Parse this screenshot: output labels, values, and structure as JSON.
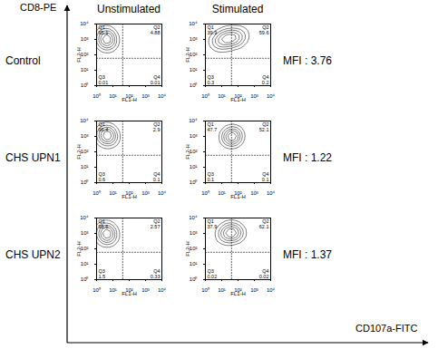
{
  "figure": {
    "y_label": "CD8-PE",
    "x_label": "CD107a-FITC",
    "columns": [
      "Unstimulated",
      "Stimulated"
    ],
    "rows": [
      {
        "label": "Control",
        "annotation": "MFI : 3.76"
      },
      {
        "label": "CHS UPN1",
        "annotation": "MFI : 1.22"
      },
      {
        "label": "CHS UPN2",
        "annotation": "MFI : 1.37"
      }
    ]
  },
  "chart_data": [
    {
      "type": "contour",
      "row": 0,
      "column": 0,
      "xlabel": "FL1-H",
      "ylabel": "FL2-H",
      "log": true,
      "xlim": [
        1,
        10000
      ],
      "ylim": [
        1,
        10000
      ],
      "xticks": [
        {
          "value": 1,
          "label": "10⁰"
        },
        {
          "value": 10,
          "label": "10¹"
        },
        {
          "value": 100,
          "label": "10²"
        },
        {
          "value": 1000,
          "label": "10³"
        },
        {
          "value": 10000,
          "label": "10⁴"
        }
      ],
      "yticks": [
        {
          "value": 1,
          "label": "10⁰"
        },
        {
          "value": 10,
          "label": "10¹"
        },
        {
          "value": 100,
          "label": "10²"
        },
        {
          "value": 1000,
          "label": "10³"
        },
        {
          "value": 10000,
          "label": "10⁴"
        }
      ],
      "quadrants": {
        "x": 40,
        "y": 60,
        "labels": [
          "Q1",
          "Q2",
          "Q3",
          "Q4"
        ],
        "values": [
          95.1,
          4.88,
          0.01,
          0.01
        ]
      },
      "points": {
        "x": [
          2,
          3,
          4,
          5,
          6,
          8,
          3,
          4,
          5,
          7,
          2.5,
          4,
          6,
          3
        ],
        "y": [
          800,
          1000,
          1200,
          1500,
          900,
          700,
          2000,
          2500,
          600,
          1100,
          1300,
          1800,
          500,
          400
        ]
      }
    },
    {
      "type": "contour",
      "row": 0,
      "column": 1,
      "xlabel": "FL1-H",
      "ylabel": "FL2-H",
      "log": true,
      "xlim": [
        1,
        10000
      ],
      "ylim": [
        1,
        10000
      ],
      "xticks": [
        {
          "value": 1,
          "label": "10⁰"
        },
        {
          "value": 10,
          "label": "10¹"
        },
        {
          "value": 100,
          "label": "10²"
        },
        {
          "value": 1000,
          "label": "10³"
        },
        {
          "value": 10000,
          "label": "10⁴"
        }
      ],
      "yticks": [
        {
          "value": 1,
          "label": "10⁰"
        },
        {
          "value": 10,
          "label": "10¹"
        },
        {
          "value": 100,
          "label": "10²"
        },
        {
          "value": 1000,
          "label": "10³"
        },
        {
          "value": 10000,
          "label": "10⁴"
        }
      ],
      "quadrants": {
        "x": 40,
        "y": 60,
        "labels": [
          "Q1",
          "Q2",
          "Q3",
          "Q4"
        ],
        "values": [
          39.9,
          59.6,
          0.3,
          0.2
        ]
      },
      "points": {
        "x": [
          5,
          10,
          20,
          40,
          80,
          150,
          8,
          15,
          30,
          60,
          4,
          12,
          25,
          50,
          100,
          200
        ],
        "y": [
          600,
          800,
          900,
          1000,
          1200,
          1500,
          1300,
          1600,
          1800,
          2000,
          700,
          500,
          1100,
          1400,
          900,
          2500
        ]
      }
    },
    {
      "type": "contour",
      "row": 1,
      "column": 0,
      "xlabel": "FL1-H",
      "ylabel": "FL2-H",
      "log": true,
      "xlim": [
        1,
        10000
      ],
      "ylim": [
        1,
        10000
      ],
      "xticks": [
        {
          "value": 1,
          "label": "10⁰"
        },
        {
          "value": 10,
          "label": "10¹"
        },
        {
          "value": 100,
          "label": "10²"
        },
        {
          "value": 1000,
          "label": "10³"
        },
        {
          "value": 10000,
          "label": "10⁴"
        }
      ],
      "yticks": [
        {
          "value": 1,
          "label": "10⁰"
        },
        {
          "value": 10,
          "label": "10¹"
        },
        {
          "value": 100,
          "label": "10²"
        },
        {
          "value": 1000,
          "label": "10³"
        },
        {
          "value": 10000,
          "label": "10⁴"
        }
      ],
      "quadrants": {
        "x": 40,
        "y": 60,
        "labels": [
          "Q1",
          "Q2",
          "Q3",
          "Q4"
        ],
        "values": [
          96.4,
          2.9,
          0.6,
          0.1
        ]
      },
      "points": {
        "x": [
          2,
          3,
          4,
          5,
          7,
          9,
          3,
          4,
          6,
          8,
          2.5,
          5,
          6,
          3.5
        ],
        "y": [
          900,
          1100,
          1300,
          1600,
          1000,
          800,
          2100,
          2400,
          700,
          1200,
          1400,
          1900,
          600,
          500
        ]
      }
    },
    {
      "type": "contour",
      "row": 1,
      "column": 1,
      "xlabel": "FL1-H",
      "ylabel": "FL2-H",
      "log": true,
      "xlim": [
        1,
        10000
      ],
      "ylim": [
        1,
        10000
      ],
      "xticks": [
        {
          "value": 1,
          "label": "10⁰"
        },
        {
          "value": 10,
          "label": "10¹"
        },
        {
          "value": 100,
          "label": "10²"
        },
        {
          "value": 1000,
          "label": "10³"
        },
        {
          "value": 10000,
          "label": "10⁴"
        }
      ],
      "yticks": [
        {
          "value": 1,
          "label": "10⁰"
        },
        {
          "value": 10,
          "label": "10¹"
        },
        {
          "value": 100,
          "label": "10²"
        },
        {
          "value": 1000,
          "label": "10³"
        },
        {
          "value": 10000,
          "label": "10⁴"
        }
      ],
      "quadrants": {
        "x": 40,
        "y": 60,
        "labels": [
          "Q1",
          "Q2",
          "Q3",
          "Q4"
        ],
        "values": [
          47.7,
          52.1,
          0.1,
          0.1
        ]
      },
      "points": {
        "x": [
          20,
          30,
          40,
          50,
          60,
          80,
          30,
          40,
          50,
          70,
          25,
          45,
          35,
          60
        ],
        "y": [
          700,
          800,
          1000,
          1200,
          900,
          1100,
          1500,
          600,
          1300,
          1000,
          900,
          1100,
          800,
          1400
        ]
      }
    },
    {
      "type": "contour",
      "row": 2,
      "column": 0,
      "xlabel": "FL1-H",
      "ylabel": "FL2-H",
      "log": true,
      "xlim": [
        1,
        10000
      ],
      "ylim": [
        1,
        10000
      ],
      "xticks": [
        {
          "value": 1,
          "label": "10⁰"
        },
        {
          "value": 10,
          "label": "10¹"
        },
        {
          "value": 100,
          "label": "10²"
        },
        {
          "value": 1000,
          "label": "10³"
        },
        {
          "value": 10000,
          "label": "10⁴"
        }
      ],
      "yticks": [
        {
          "value": 1,
          "label": "10⁰"
        },
        {
          "value": 10,
          "label": "10¹"
        },
        {
          "value": 100,
          "label": "10²"
        },
        {
          "value": 1000,
          "label": "10³"
        },
        {
          "value": 10000,
          "label": "10⁴"
        }
      ],
      "quadrants": {
        "x": 40,
        "y": 60,
        "labels": [
          "Q1",
          "Q2",
          "Q3",
          "Q4"
        ],
        "values": [
          95.6,
          2.57,
          1.5,
          0.33
        ]
      },
      "points": {
        "x": [
          2,
          3,
          4,
          5,
          6,
          8,
          3,
          4,
          5,
          7,
          2.5,
          4.5,
          6,
          3
        ],
        "y": [
          700,
          900,
          1100,
          1400,
          800,
          650,
          1800,
          2300,
          550,
          1000,
          1200,
          1700,
          450,
          380
        ]
      }
    },
    {
      "type": "contour",
      "row": 2,
      "column": 1,
      "xlabel": "FL1-H",
      "ylabel": "FL2-H",
      "log": true,
      "xlim": [
        1,
        10000
      ],
      "ylim": [
        1,
        10000
      ],
      "xticks": [
        {
          "value": 1,
          "label": "10⁰"
        },
        {
          "value": 10,
          "label": "10¹"
        },
        {
          "value": 100,
          "label": "10²"
        },
        {
          "value": 1000,
          "label": "10³"
        },
        {
          "value": 10000,
          "label": "10⁴"
        }
      ],
      "yticks": [
        {
          "value": 1,
          "label": "10⁰"
        },
        {
          "value": 10,
          "label": "10¹"
        },
        {
          "value": 100,
          "label": "10²"
        },
        {
          "value": 1000,
          "label": "10³"
        },
        {
          "value": 10000,
          "label": "10⁴"
        }
      ],
      "quadrants": {
        "x": 40,
        "y": 60,
        "labels": [
          "Q1",
          "Q2",
          "Q3",
          "Q4"
        ],
        "values": [
          37.9,
          62.1,
          0.02,
          0.02
        ]
      },
      "points": {
        "x": [
          10,
          20,
          30,
          50,
          80,
          120,
          15,
          25,
          40,
          60,
          12,
          35,
          90,
          45
        ],
        "y": [
          600,
          800,
          1000,
          1200,
          1400,
          1000,
          1500,
          700,
          900,
          1300,
          1100,
          1800,
          800,
          2000
        ]
      }
    }
  ]
}
